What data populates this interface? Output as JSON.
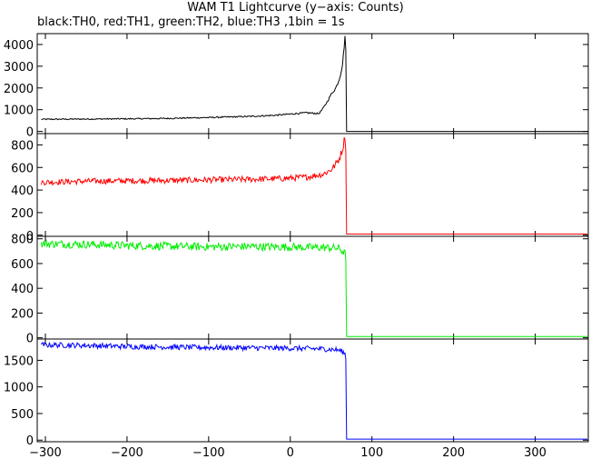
{
  "title": "WAM T1 Lightcurve (y−axis: Counts)",
  "subtitle": "black:TH0, red:TH1, green:TH2, blue:TH3 ,1bin = 1s",
  "chart_data": {
    "type": "line",
    "x_range": [
      -310,
      365
    ],
    "x_ticks": [
      -300,
      -200,
      -100,
      0,
      100,
      200,
      300
    ],
    "x_tick_labels": [
      "−300",
      "−200",
      "−100",
      "0",
      "100",
      "200",
      "300"
    ],
    "bin_seconds": 1,
    "panels": [
      {
        "name": "TH0",
        "color": "#000000",
        "ylim": [
          -100,
          4500
        ],
        "yticks": [
          0,
          1000,
          2000,
          3000,
          4000
        ],
        "x": [
          -300,
          -250,
          -200,
          -150,
          -100,
          -50,
          -20,
          0,
          20,
          35,
          40,
          45,
          50,
          55,
          58,
          60,
          62,
          64,
          66,
          67,
          68,
          69,
          70,
          100,
          200,
          300,
          365
        ],
        "y": [
          560,
          570,
          580,
          600,
          640,
          690,
          740,
          800,
          860,
          820,
          1050,
          1350,
          1700,
          1950,
          2200,
          2400,
          2700,
          3100,
          3900,
          4400,
          3700,
          0,
          0,
          0,
          0,
          0,
          0
        ]
      },
      {
        "name": "TH1",
        "color": "#ff0000",
        "ylim": [
          -10,
          900
        ],
        "yticks": [
          0,
          200,
          400,
          600,
          800
        ],
        "x": [
          -300,
          -250,
          -200,
          -150,
          -100,
          -50,
          -20,
          0,
          20,
          40,
          50,
          55,
          60,
          64,
          67,
          68,
          69,
          70,
          100,
          200,
          300,
          365
        ],
        "y": [
          470,
          478,
          482,
          485,
          490,
          495,
          500,
          505,
          515,
          540,
          580,
          620,
          680,
          760,
          880,
          760,
          10,
          10,
          10,
          10,
          10,
          10
        ]
      },
      {
        "name": "TH2",
        "color": "#00ee00",
        "ylim": [
          -10,
          820
        ],
        "yticks": [
          0,
          200,
          400,
          600,
          800
        ],
        "x": [
          -300,
          -250,
          -200,
          -150,
          -100,
          -50,
          -20,
          0,
          20,
          40,
          55,
          60,
          64,
          67,
          68,
          69,
          70,
          100,
          200,
          300,
          365
        ],
        "y": [
          760,
          755,
          745,
          740,
          735,
          738,
          735,
          735,
          730,
          730,
          725,
          720,
          700,
          680,
          660,
          10,
          10,
          10,
          10,
          10,
          10
        ]
      },
      {
        "name": "TH3",
        "color": "#0000ff",
        "ylim": [
          -30,
          1900
        ],
        "yticks": [
          0,
          500,
          1000,
          1500
        ],
        "x": [
          -300,
          -250,
          -200,
          -150,
          -100,
          -50,
          -20,
          0,
          20,
          40,
          55,
          60,
          64,
          67,
          68,
          69,
          70,
          100,
          200,
          300,
          365
        ],
        "y": [
          1790,
          1780,
          1760,
          1750,
          1740,
          1735,
          1730,
          1728,
          1720,
          1715,
          1700,
          1690,
          1660,
          1620,
          1560,
          20,
          20,
          20,
          20,
          20,
          20
        ]
      }
    ]
  }
}
